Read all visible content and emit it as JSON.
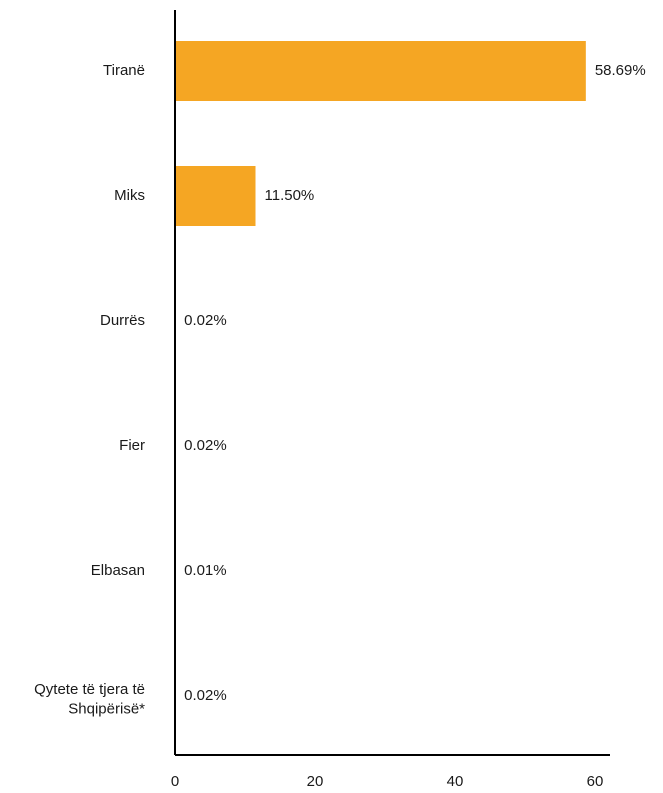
{
  "chart_data": {
    "type": "bar",
    "orientation": "horizontal",
    "categories": [
      "Tiranë",
      "Miks",
      "Durrës",
      "Fier",
      "Elbasan",
      "Qytete të tjera të Shqipërisë*"
    ],
    "values": [
      58.69,
      11.5,
      0.02,
      0.02,
      0.01,
      0.02
    ],
    "value_labels": [
      "58.69%",
      "11.50%",
      "0.02%",
      "0.02%",
      "0.01%",
      "0.02%"
    ],
    "xlim": [
      0,
      60
    ],
    "xticks": [
      0,
      20,
      40,
      60
    ],
    "xtick_labels": [
      "0",
      "20",
      "40",
      "60"
    ],
    "title": "",
    "xlabel": "",
    "ylabel": "",
    "grid": false,
    "bar_color": "#F5A623",
    "text_color": "#1a1a1a",
    "axis_color": "#000000"
  }
}
